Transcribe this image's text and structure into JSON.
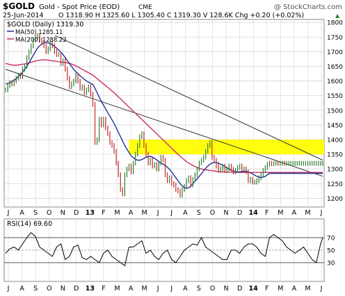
{
  "header": {
    "symbol": "$GOLD",
    "name": "Gold - Spot Price (EOD)",
    "exchange": "CME",
    "watermark": "@ StockCharts.com",
    "date": "25-Jun-2014",
    "ohlc": "O 1318.90  H 1325.60  L 1305.40  C 1319.30  V 128.6K  Chg +0.20 (+0.02%)",
    "up_marker": "▲"
  },
  "legend": {
    "price": "$GOLD (Daily) 1319.30",
    "ma50": "MA(50) 1285.11",
    "ma200": "MA(200) 1288.22"
  },
  "rsi_legend": "RSI(14) 69.60",
  "colors": {
    "price_up": "#2e7d32",
    "price_down": "#c62828",
    "ma50": "#1f2f99",
    "ma200": "#cc2e5d",
    "highlight": "#ffff00",
    "rsi": "#000000",
    "grid": "#d4d4d4",
    "trendline": "#333333"
  },
  "chart_data": [
    {
      "type": "line",
      "title": "$GOLD (Daily)",
      "x_tick_labels": [
        "J",
        "A",
        "S",
        "O",
        "N",
        "D",
        "13",
        "F",
        "M",
        "A",
        "M",
        "J",
        "J",
        "A",
        "S",
        "O",
        "N",
        "D",
        "14",
        "F",
        "M",
        "A",
        "M",
        "J"
      ],
      "y_ticks": [
        1200,
        1250,
        1300,
        1350,
        1400,
        1450,
        1500,
        1550,
        1600,
        1650,
        1700,
        1750,
        1800
      ],
      "ylim": [
        1170,
        1810
      ],
      "highlight_band": [
        1350,
        1400
      ],
      "x": [
        0,
        3,
        6,
        9,
        12,
        15,
        18,
        21,
        24,
        27,
        30,
        33,
        36,
        39,
        42,
        45,
        48,
        51,
        54,
        57,
        60,
        63,
        66,
        69,
        72,
        75,
        78,
        81,
        84,
        87,
        90,
        93,
        96,
        99,
        102,
        105,
        108,
        111,
        114,
        117,
        120,
        123,
        126,
        129,
        132,
        135,
        138,
        141,
        144,
        147,
        150,
        153,
        156,
        159,
        162,
        165,
        168,
        171,
        174,
        177,
        180,
        183,
        186,
        189,
        192,
        195,
        198,
        201,
        204,
        207,
        210,
        213,
        216,
        219,
        222,
        225,
        228,
        231,
        234,
        237,
        240,
        243,
        246,
        249,
        252,
        255,
        258,
        261,
        264,
        267,
        270,
        273,
        276,
        279,
        282,
        285,
        288,
        291,
        294,
        297,
        300,
        303,
        306,
        309,
        312,
        315,
        318,
        321,
        324,
        327,
        330,
        333,
        336,
        339,
        342,
        345,
        348,
        351,
        354,
        357,
        360,
        363,
        366,
        369,
        372,
        375,
        378,
        381,
        384,
        387,
        390,
        393,
        396,
        399,
        402,
        405,
        408,
        411,
        414,
        417,
        420,
        423,
        426,
        429,
        432,
        435,
        438,
        441,
        444,
        447
      ],
      "series": [
        {
          "name": "$GOLD",
          "values": [
            1570,
            1585,
            1595,
            1590,
            1600,
            1610,
            1620,
            1615,
            1640,
            1650,
            1680,
            1700,
            1720,
            1740,
            1750,
            1755,
            1740,
            1730,
            1720,
            1700,
            1710,
            1730,
            1720,
            1700,
            1690,
            1690,
            1660,
            1670,
            1640,
            1610,
            1580,
            1590,
            1600,
            1620,
            1600,
            1575,
            1580,
            1560,
            1570,
            1580,
            1555,
            1520,
            1390,
            1400,
            1470,
            1450,
            1470,
            1440,
            1420,
            1390,
            1380,
            1360,
            1320,
            1280,
            1230,
            1215,
            1280,
            1300,
            1310,
            1290,
            1320,
            1350,
            1380,
            1410,
            1420,
            1380,
            1350,
            1320,
            1330,
            1310,
            1315,
            1300,
            1320,
            1340,
            1330,
            1280,
            1260,
            1270,
            1250,
            1245,
            1230,
            1225,
            1210,
            1230,
            1240,
            1260,
            1270,
            1245,
            1265,
            1280,
            1300,
            1320,
            1330,
            1340,
            1360,
            1380,
            1390,
            1340,
            1330,
            1310,
            1295,
            1300,
            1310,
            1295,
            1300,
            1310,
            1300,
            1290,
            1295,
            1305,
            1310,
            1300,
            1300,
            1290,
            1260,
            1265,
            1255,
            1255,
            1260,
            1270,
            1280,
            1295,
            1305,
            1315,
            1320,
            1318,
            1319,
            1320,
            1319,
            1319,
            1320,
            1319,
            1319,
            1319,
            1319,
            1319,
            1319,
            1319,
            1319,
            1319,
            1319,
            1319,
            1319,
            1319,
            1319,
            1319,
            1319,
            1319,
            1319,
            1319
          ]
        },
        {
          "name": "MA(50)",
          "values": [
            1590,
            1592,
            1594,
            1598,
            1602,
            1608,
            1615,
            1622,
            1630,
            1640,
            1650,
            1662,
            1675,
            1688,
            1700,
            1712,
            1720,
            1726,
            1730,
            1731,
            1730,
            1728,
            1724,
            1718,
            1712,
            1705,
            1698,
            1690,
            1680,
            1670,
            1660,
            1650,
            1640,
            1632,
            1625,
            1618,
            1612,
            1606,
            1600,
            1596,
            1592,
            1588,
            1575,
            1560,
            1545,
            1530,
            1518,
            1505,
            1492,
            1480,
            1468,
            1455,
            1440,
            1425,
            1410,
            1395,
            1380,
            1368,
            1356,
            1345,
            1338,
            1333,
            1330,
            1330,
            1332,
            1336,
            1340,
            1342,
            1343,
            1340,
            1336,
            1331,
            1325,
            1320,
            1316,
            1312,
            1306,
            1299,
            1290,
            1280,
            1270,
            1260,
            1250,
            1242,
            1236,
            1234,
            1236,
            1242,
            1250,
            1258,
            1266,
            1275,
            1284,
            1293,
            1302,
            1310,
            1316,
            1320,
            1322,
            1322,
            1320,
            1316,
            1312,
            1308,
            1304,
            1300,
            1296,
            1293,
            1291,
            1290,
            1290,
            1291,
            1292,
            1292,
            1290,
            1287,
            1283,
            1279,
            1275,
            1272,
            1271,
            1272,
            1275,
            1280,
            1285,
            1285,
            1285,
            1285,
            1285,
            1285,
            1285,
            1285,
            1285,
            1285,
            1285,
            1285,
            1285,
            1285,
            1285,
            1285,
            1285,
            1285,
            1285,
            1285,
            1285,
            1285,
            1285,
            1285,
            1285,
            1285
          ]
        },
        {
          "name": "MA(200)",
          "values": [
            1660,
            1658,
            1656,
            1655,
            1654,
            1654,
            1655,
            1656,
            1657,
            1658,
            1660,
            1662,
            1664,
            1666,
            1668,
            1670,
            1671,
            1672,
            1672,
            1672,
            1671,
            1670,
            1669,
            1668,
            1667,
            1666,
            1665,
            1664,
            1663,
            1662,
            1660,
            1658,
            1655,
            1652,
            1648,
            1644,
            1640,
            1636,
            1632,
            1628,
            1624,
            1620,
            1614,
            1608,
            1602,
            1596,
            1590,
            1584,
            1578,
            1572,
            1566,
            1560,
            1553,
            1546,
            1539,
            1532,
            1525,
            1518,
            1511,
            1504,
            1497,
            1490,
            1483,
            1476,
            1469,
            1462,
            1455,
            1448,
            1441,
            1434,
            1427,
            1420,
            1413,
            1406,
            1399,
            1392,
            1385,
            1378,
            1371,
            1364,
            1357,
            1350,
            1343,
            1337,
            1331,
            1325,
            1320,
            1316,
            1312,
            1308,
            1305,
            1302,
            1300,
            1298,
            1297,
            1296,
            1295,
            1294,
            1293,
            1292,
            1291,
            1290,
            1290,
            1289,
            1289,
            1289,
            1289,
            1288,
            1288,
            1288,
            1288,
            1288,
            1288,
            1288,
            1288,
            1288,
            1288,
            1288,
            1288,
            1288,
            1288,
            1288,
            1288,
            1288,
            1288,
            1288,
            1288,
            1288,
            1288,
            1288,
            1288,
            1288,
            1288,
            1288,
            1288,
            1288,
            1288,
            1288,
            1288,
            1288,
            1288,
            1288,
            1288,
            1288,
            1288,
            1288,
            1288,
            1288,
            1288,
            1288
          ]
        }
      ],
      "trendlines": [
        {
          "from": [
            0,
            1640
          ],
          "to": [
            447,
            1275
          ]
        },
        {
          "from": [
            70,
            1755
          ],
          "to": [
            447,
            1330
          ]
        }
      ]
    },
    {
      "type": "line",
      "title": "RSI(14)",
      "y_ticks": [
        30,
        50,
        70
      ],
      "ylim": [
        0,
        100
      ],
      "x": [
        0,
        6,
        12,
        18,
        24,
        30,
        36,
        42,
        48,
        54,
        60,
        66,
        72,
        78,
        84,
        90,
        96,
        102,
        108,
        114,
        120,
        126,
        132,
        138,
        144,
        150,
        156,
        162,
        168,
        174,
        180,
        186,
        192,
        198,
        204,
        210,
        216,
        222,
        228,
        234,
        240,
        246,
        252,
        258,
        264,
        270,
        276,
        282,
        288,
        294,
        300,
        306,
        312,
        318,
        324,
        330,
        336,
        342,
        348,
        354,
        360,
        366,
        372,
        378,
        384,
        390,
        396,
        402,
        408,
        414,
        420,
        426,
        432,
        438,
        444,
        447
      ],
      "series": [
        {
          "name": "RSI(14)",
          "values": [
            45,
            52,
            55,
            50,
            60,
            70,
            78,
            72,
            55,
            50,
            45,
            40,
            55,
            60,
            35,
            40,
            55,
            58,
            38,
            35,
            40,
            35,
            30,
            45,
            50,
            40,
            35,
            30,
            25,
            55,
            55,
            60,
            65,
            45,
            50,
            40,
            35,
            45,
            50,
            35,
            30,
            40,
            50,
            55,
            60,
            58,
            70,
            55,
            50,
            45,
            40,
            35,
            35,
            50,
            50,
            45,
            55,
            60,
            60,
            55,
            45,
            40,
            70,
            75,
            70,
            65,
            55,
            50,
            45,
            50,
            55,
            45,
            35,
            30,
            60,
            70
          ]
        }
      ]
    }
  ]
}
